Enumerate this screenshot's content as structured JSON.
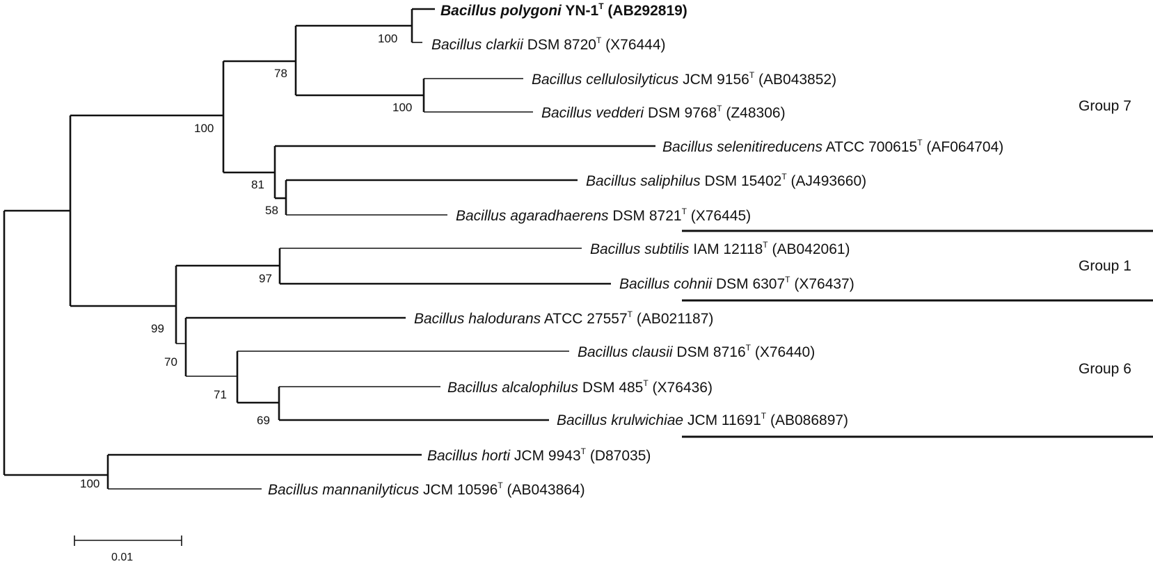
{
  "taxa": [
    {
      "id": "polygoni",
      "genus": "Bacillus",
      "species": "polygoni",
      "strain": "YN-1",
      "type_mark": "T",
      "accession": "(AB292819)",
      "bold": true
    },
    {
      "id": "clarkii",
      "genus": "Bacillus",
      "species": "clarkii",
      "strain": "DSM 8720",
      "type_mark": "T",
      "accession": "(X76444)",
      "bold": false
    },
    {
      "id": "cellulosilyticus",
      "genus": "Bacillus",
      "species": "cellulosilyticus",
      "strain": "JCM 9156",
      "type_mark": "T",
      "accession": "(AB043852)",
      "bold": false
    },
    {
      "id": "vedderi",
      "genus": "Bacillus",
      "species": "vedderi",
      "strain": "DSM 9768",
      "type_mark": "T",
      "accession": "(Z48306)",
      "bold": false
    },
    {
      "id": "selenitireducens",
      "genus": "Bacillus",
      "species": "selenitireducens",
      "strain": "ATCC 700615",
      "type_mark": "T",
      "accession": "(AF064704)",
      "bold": false
    },
    {
      "id": "saliphilus",
      "genus": "Bacillus",
      "species": "saliphilus",
      "strain": "DSM 15402",
      "type_mark": "T",
      "accession": "(AJ493660)",
      "bold": false
    },
    {
      "id": "agaradhaerens",
      "genus": "Bacillus",
      "species": "agaradhaerens",
      "strain": "DSM 8721",
      "type_mark": "T",
      "accession": "(X76445)",
      "bold": false
    },
    {
      "id": "subtilis",
      "genus": "Bacillus",
      "species": "subtilis",
      "strain": "IAM 12118",
      "type_mark": "T",
      "accession": "(AB042061)",
      "bold": false
    },
    {
      "id": "cohnii",
      "genus": "Bacillus",
      "species": "cohnii",
      "strain": "DSM 6307",
      "type_mark": "T",
      "accession": "(X76437)",
      "bold": false
    },
    {
      "id": "halodurans",
      "genus": "Bacillus",
      "species": "halodurans",
      "strain": "ATCC 27557",
      "type_mark": "T",
      "accession": "(AB021187)",
      "bold": false
    },
    {
      "id": "clausii",
      "genus": "Bacillus",
      "species": "clausii",
      "strain": "DSM 8716",
      "type_mark": "T",
      "accession": "(X76440)",
      "bold": false
    },
    {
      "id": "alcalophilus",
      "genus": "Bacillus",
      "species": "alcalophilus",
      "strain": "DSM 485",
      "type_mark": "T",
      "accession": "(X76436)",
      "bold": false
    },
    {
      "id": "krulwichiae",
      "genus": "Bacillus",
      "species": "krulwichiae",
      "strain": "JCM 11691",
      "type_mark": "T",
      "accession": "(AB086897)",
      "bold": false
    },
    {
      "id": "horti",
      "genus": "Bacillus",
      "species": "horti",
      "strain": "JCM 9943",
      "type_mark": "T",
      "accession": "(D87035)",
      "bold": false
    },
    {
      "id": "mannanilyticus",
      "genus": "Bacillus",
      "species": "mannanilyticus",
      "strain": "JCM 10596",
      "type_mark": "T",
      "accession": "(AB043864)",
      "bold": false
    }
  ],
  "bootstrap_values": [
    {
      "node": "polygoni-clarkii",
      "value": "100"
    },
    {
      "node": "cellulosilyticus-vedderi",
      "value": "100"
    },
    {
      "node": "group7-upper",
      "value": "78"
    },
    {
      "node": "group7",
      "value": "100"
    },
    {
      "node": "saliphilus-agaradhaerens",
      "value": "58"
    },
    {
      "node": "selenitireducens-clade",
      "value": "81"
    },
    {
      "node": "subtilis-cohnii",
      "value": "97"
    },
    {
      "node": "group1-group6",
      "value": "99"
    },
    {
      "node": "group6",
      "value": "70"
    },
    {
      "node": "clausii-clade",
      "value": "71"
    },
    {
      "node": "alcalophilus-krulwichiae",
      "value": "69"
    },
    {
      "node": "horti-mannanilyticus",
      "value": "100"
    }
  ],
  "groups": [
    {
      "id": "group7",
      "label": "Group 7"
    },
    {
      "id": "group1",
      "label": "Group 1"
    },
    {
      "id": "group6",
      "label": "Group 6"
    }
  ],
  "scale_bar": {
    "label": "0.01"
  }
}
